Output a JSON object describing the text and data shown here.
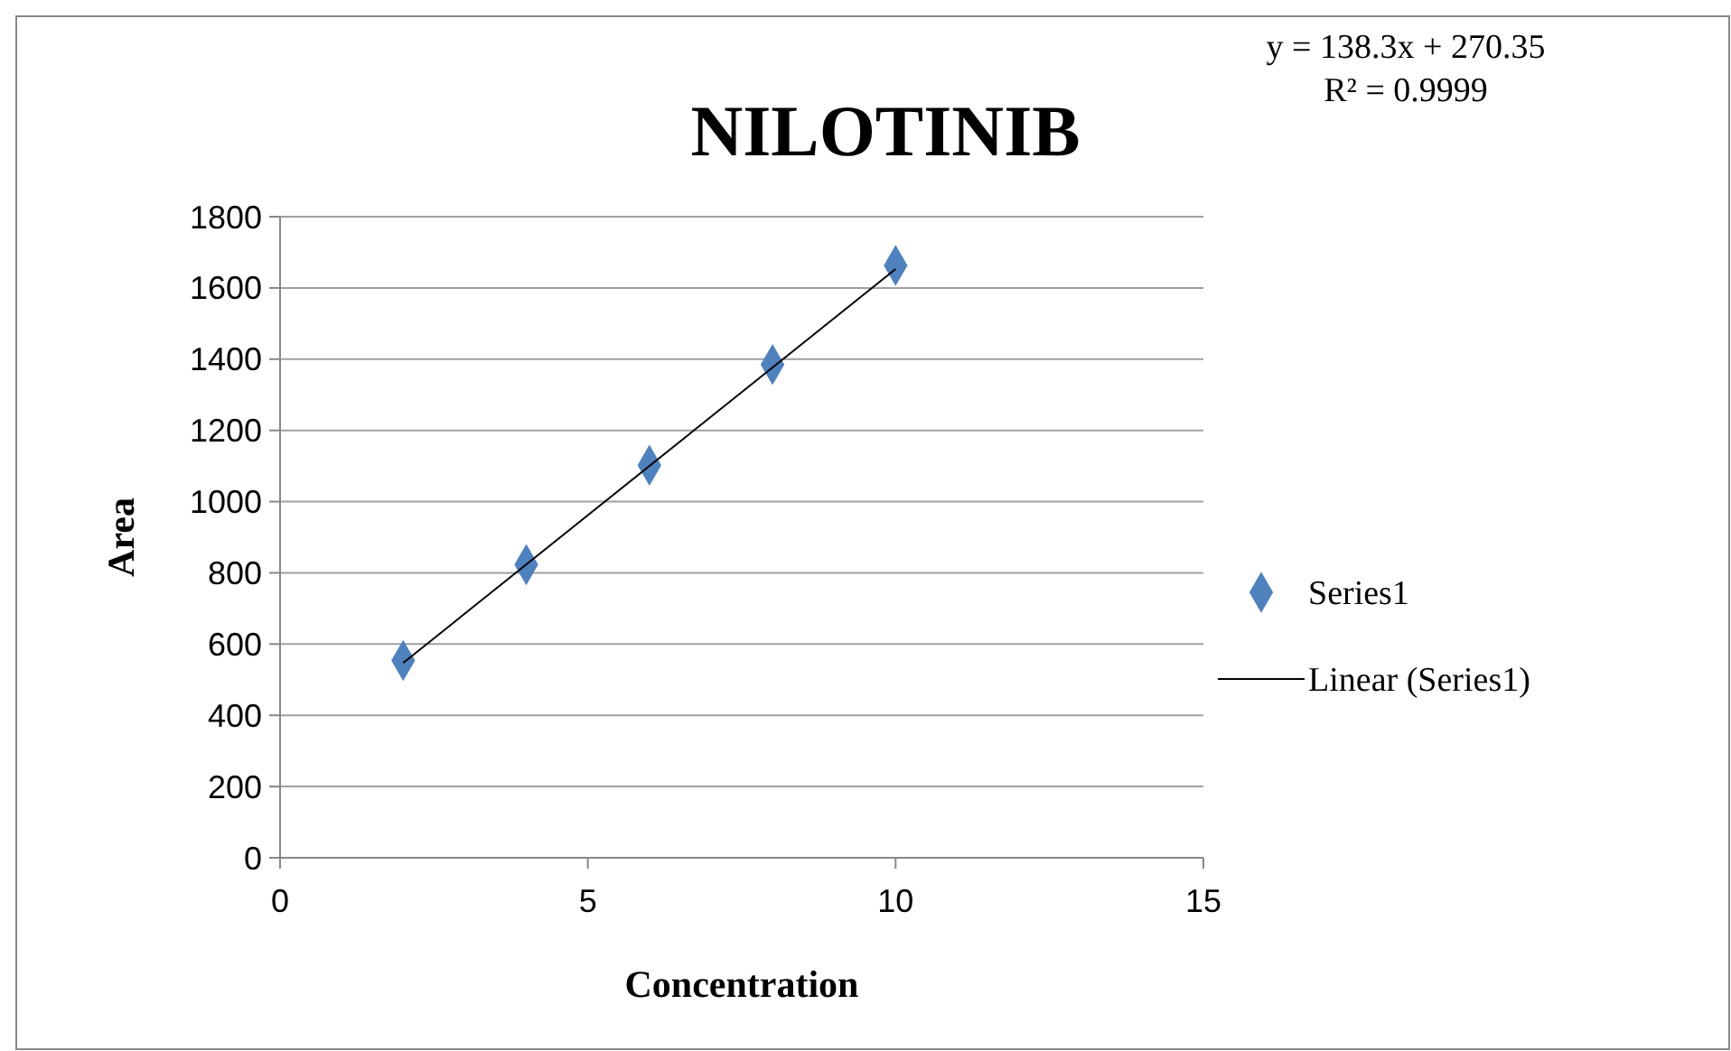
{
  "chart_data": {
    "type": "scatter",
    "title": "NILOTINIB",
    "xlabel": "Concentration",
    "ylabel": "Area",
    "annotations": [
      "y = 138.3x + 270.35",
      "R² = 0.9999"
    ],
    "xlim": [
      0,
      15
    ],
    "xticks": [
      0,
      5,
      10,
      15
    ],
    "ylim": [
      0,
      1800
    ],
    "yticks": [
      0,
      200,
      400,
      600,
      800,
      1000,
      1200,
      1400,
      1600,
      1800
    ],
    "grid": "y",
    "legend": "right",
    "marker": "diamond",
    "series": [
      {
        "name": "Series1",
        "color": "#4f81bd",
        "x": [
          2,
          4,
          6,
          8,
          10
        ],
        "values": [
          554,
          823,
          1102,
          1385,
          1663
        ]
      },
      {
        "name": "Linear (Series1)",
        "type": "line",
        "color": "#000000",
        "line_style": "solid",
        "marker": "none",
        "x": [
          2,
          10
        ],
        "values": [
          547,
          1653
        ]
      }
    ]
  }
}
